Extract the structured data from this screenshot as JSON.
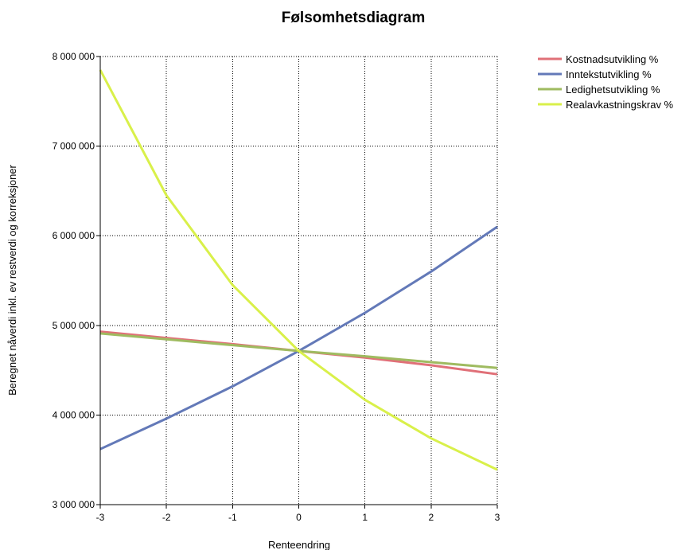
{
  "chart_data": {
    "type": "line",
    "title": "Følsomhetsdiagram",
    "xlabel": "Renteendring",
    "ylabel": "Beregnet nåverdi inkl. ev restverdi og korreksjoner",
    "x": [
      -3,
      -2,
      -1,
      0,
      1,
      2,
      3
    ],
    "xlim": [
      -3,
      3
    ],
    "ylim": [
      3000000,
      8000000
    ],
    "xticks": [
      "-3",
      "-2",
      "-1",
      "0",
      "1",
      "2",
      "3"
    ],
    "yticks": [
      {
        "value": 3000000,
        "label": "3 000 000"
      },
      {
        "value": 4000000,
        "label": "4 000 000"
      },
      {
        "value": 5000000,
        "label": "5 000 000"
      },
      {
        "value": 6000000,
        "label": "6 000 000"
      },
      {
        "value": 7000000,
        "label": "7 000 000"
      },
      {
        "value": 8000000,
        "label": "8 000 000"
      }
    ],
    "grid": true,
    "legend_position": "top-right",
    "series": [
      {
        "name": "Kostnadsutvikling %",
        "color": "#e07078",
        "values": [
          4930000,
          4860000,
          4790000,
          4715000,
          4640000,
          4555000,
          4455000
        ]
      },
      {
        "name": "Inntekstutvikling %",
        "color": "#6379b8",
        "values": [
          3620000,
          3960000,
          4320000,
          4715000,
          5140000,
          5600000,
          6100000
        ]
      },
      {
        "name": "Ledighetsutvikling %",
        "color": "#9fbb60",
        "values": [
          4910000,
          4845000,
          4780000,
          4715000,
          4655000,
          4590000,
          4525000
        ]
      },
      {
        "name": "Realavkastningskrav %",
        "color": "#d9f04a",
        "values": [
          7850000,
          6450000,
          5450000,
          4715000,
          4170000,
          3740000,
          3390000
        ]
      }
    ]
  }
}
